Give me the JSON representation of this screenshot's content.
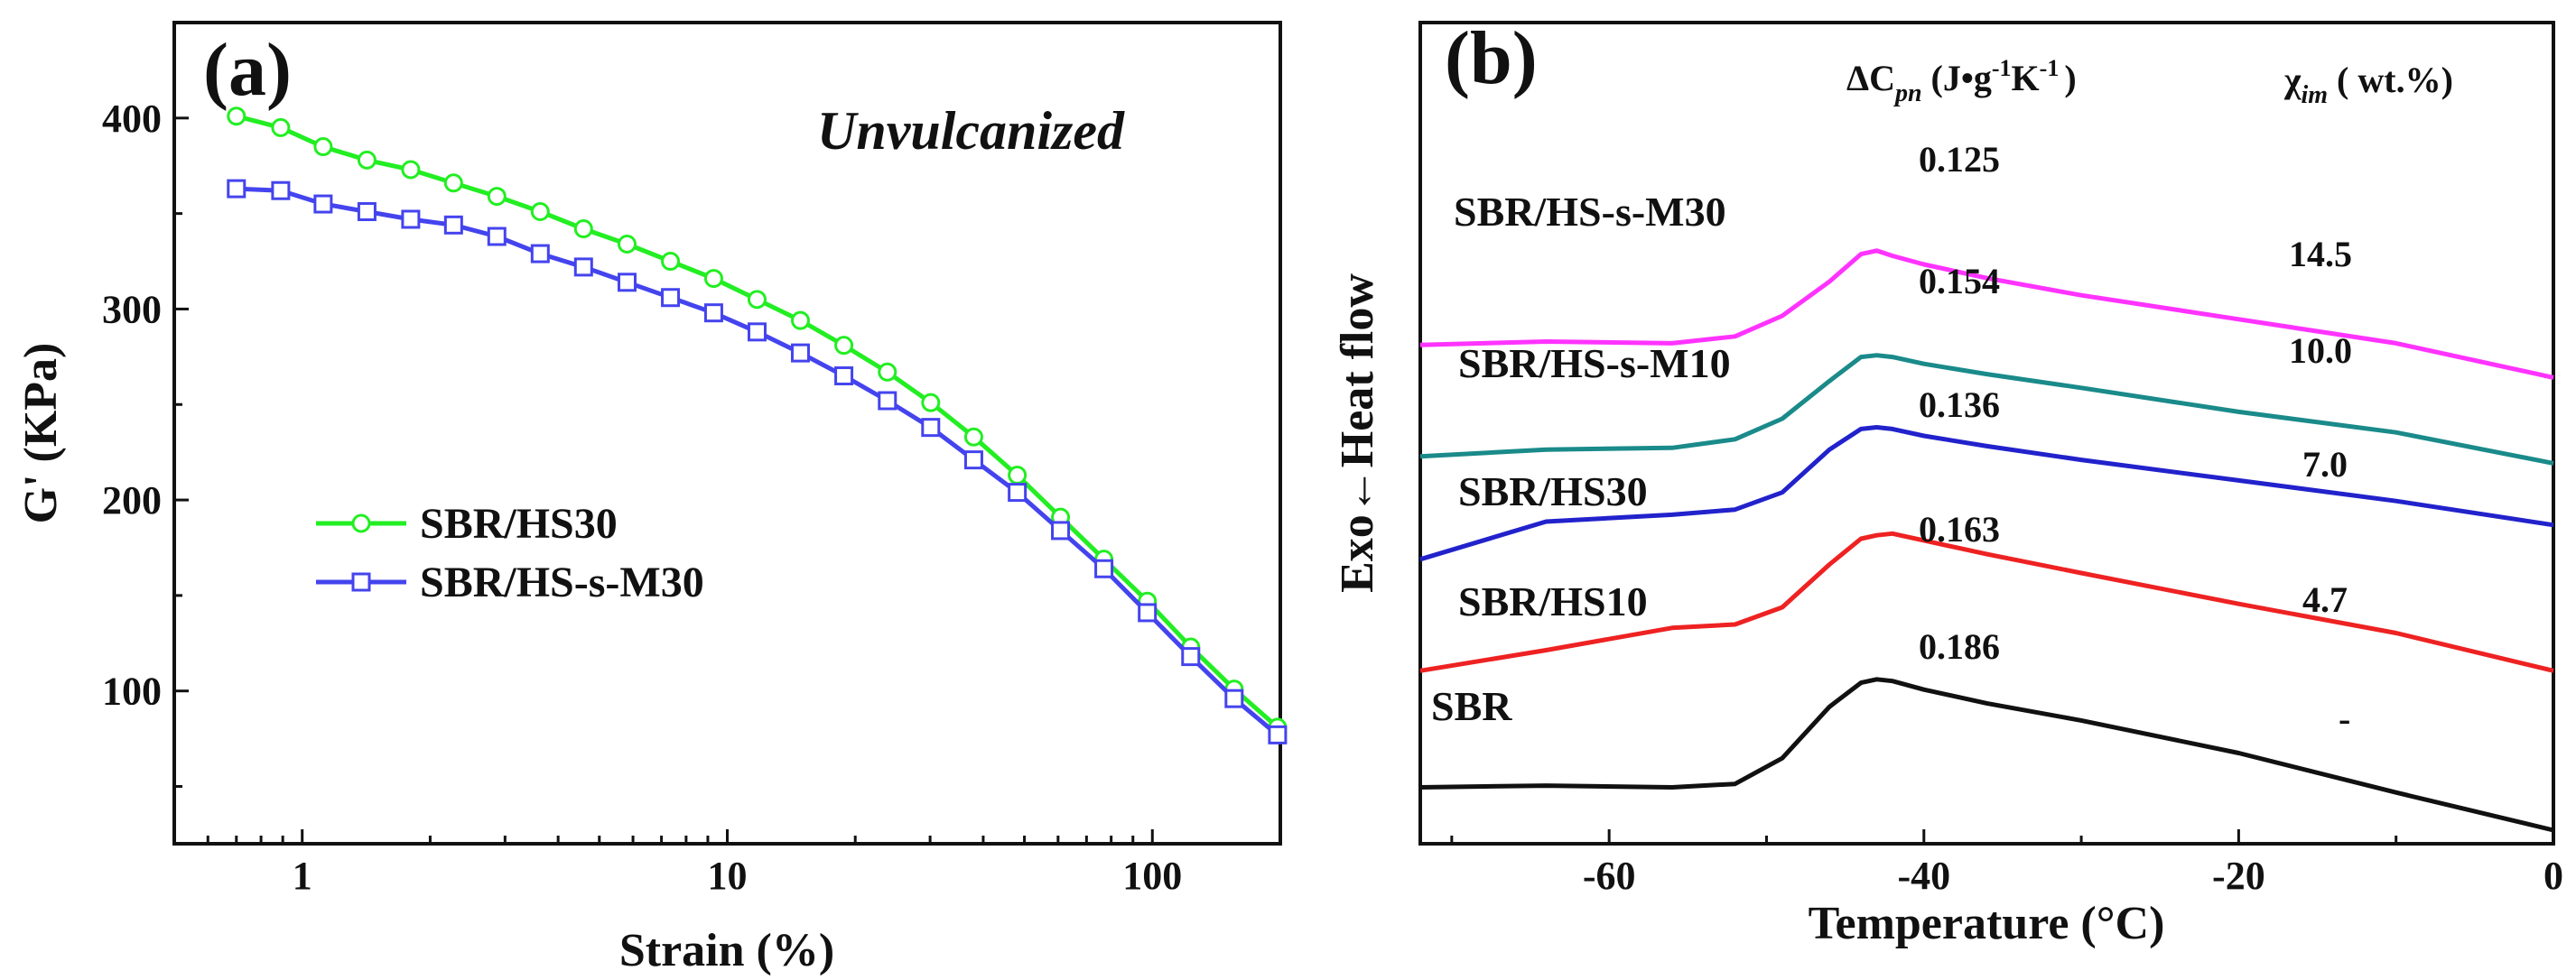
{
  "chart_data": [
    {
      "type": "line",
      "panel_label": "(a)",
      "annotation": "Unvulcanized",
      "xlabel": "Strain (%)",
      "ylabel": "G' (KPa)",
      "xscale": "log",
      "xlim": [
        0.5,
        200
      ],
      "ylim": [
        20,
        450
      ],
      "xticks": [
        1,
        10,
        100
      ],
      "xtick_labels": [
        "1",
        "10",
        "100"
      ],
      "yticks": [
        100,
        200,
        300,
        400
      ],
      "ytick_labels": [
        "100",
        "200",
        "300",
        "400"
      ],
      "legend_position": "lower-left",
      "x": [
        0.7,
        0.89,
        1.12,
        1.42,
        1.8,
        2.27,
        2.87,
        3.63,
        4.59,
        5.81,
        7.35,
        9.29,
        11.75,
        14.86,
        18.8,
        23.8,
        30.1,
        38.0,
        48.1,
        60.8,
        76.9,
        97.3,
        123.1,
        155.7,
        197.0
      ],
      "series": [
        {
          "name": "SBR/HS30",
          "color": "#22ee22",
          "marker": "circle",
          "values": [
            401,
            395,
            385,
            378,
            373,
            366,
            359,
            351,
            342,
            334,
            325,
            316,
            305,
            294,
            281,
            267,
            251,
            233,
            213,
            191,
            169,
            147,
            123,
            101,
            81
          ]
        },
        {
          "name": "SBR/HS-s-M30",
          "color": "#4444ee",
          "marker": "square",
          "values": [
            363,
            362,
            355,
            351,
            347,
            344,
            338,
            329,
            322,
            314,
            306,
            298,
            288,
            277,
            265,
            252,
            238,
            221,
            204,
            184,
            164,
            141,
            118,
            96,
            77
          ]
        }
      ]
    },
    {
      "type": "line",
      "panel_label": "(b)",
      "xlabel": "Temperature (°C)",
      "ylabel": "Exo←Heat flow",
      "xlim": [
        -72,
        0
      ],
      "xticks": [
        -60,
        -40,
        -20,
        0
      ],
      "xtick_labels": [
        "-60",
        "-40",
        "-20",
        "0"
      ],
      "column_headers": {
        "delta_cp": "ΔC",
        "delta_cp_sub": "pn",
        "delta_cp_units": "(J•g",
        "delta_cp_exp1": "-1",
        "delta_cp_k": "K",
        "delta_cp_exp2": "-1",
        "delta_cp_close": ")",
        "chi": "χ",
        "chi_sub": "im",
        "chi_units": "( wt.%)"
      },
      "x": [
        -72,
        -64,
        -56,
        -52,
        -49,
        -46,
        -44,
        -43,
        -42,
        -40,
        -36,
        -30,
        -20,
        -10,
        0
      ],
      "series": [
        {
          "name": "SBR/HS-s-M30",
          "color": "#ff33ff",
          "delta_cp": "0.125",
          "chi": "14.5",
          "values": [
            2.83,
            2.85,
            2.84,
            2.88,
            3.0,
            3.2,
            3.36,
            3.38,
            3.35,
            3.3,
            3.22,
            3.12,
            2.98,
            2.84,
            2.64
          ]
        },
        {
          "name": "SBR/HS-s-M10",
          "color": "#1a8a8a",
          "delta_cp": "0.154",
          "chi": "10.0",
          "values": [
            2.18,
            2.22,
            2.23,
            2.28,
            2.4,
            2.62,
            2.76,
            2.77,
            2.76,
            2.72,
            2.66,
            2.58,
            2.44,
            2.32,
            2.14
          ]
        },
        {
          "name": "SBR/HS30",
          "color": "#2222cc",
          "delta_cp": "0.136",
          "chi": "7.0",
          "values": [
            1.58,
            1.8,
            1.84,
            1.87,
            1.97,
            2.22,
            2.34,
            2.35,
            2.34,
            2.3,
            2.24,
            2.16,
            2.04,
            1.92,
            1.78
          ]
        },
        {
          "name": "SBR/HS10",
          "color": "#ee2222",
          "delta_cp": "0.163",
          "chi": "4.7",
          "values": [
            0.93,
            1.05,
            1.18,
            1.2,
            1.3,
            1.55,
            1.7,
            1.72,
            1.73,
            1.69,
            1.61,
            1.5,
            1.32,
            1.15,
            0.93
          ]
        },
        {
          "name": "SBR",
          "color": "#111111",
          "delta_cp": "0.186",
          "chi": "-",
          "values": [
            0.25,
            0.26,
            0.25,
            0.27,
            0.42,
            0.72,
            0.86,
            0.88,
            0.87,
            0.82,
            0.74,
            0.64,
            0.45,
            0.22,
            0.0
          ]
        }
      ]
    }
  ]
}
